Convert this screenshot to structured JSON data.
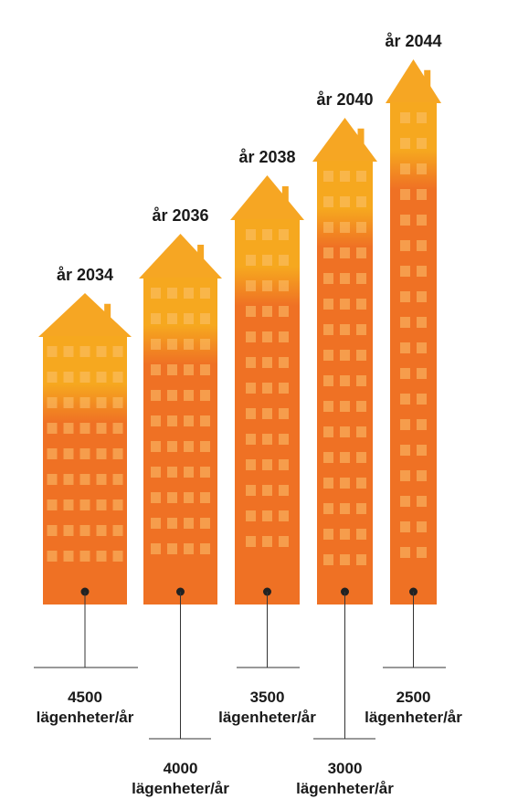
{
  "colors": {
    "roof": "#f6a623",
    "wall_top": "#f6a81f",
    "wall_bottom": "#ef7124",
    "window": "#fbc16e",
    "line": "#333333",
    "dot": "#222222"
  },
  "chart_data": {
    "type": "bar",
    "style": "building pictogram",
    "categories": [
      "år 2034",
      "år 2036",
      "år 2038",
      "år 2040",
      "år 2044"
    ],
    "values": [
      4500,
      4000,
      3500,
      3000,
      2500
    ],
    "unit": "lägenheter/år",
    "value_labels": [
      "4500",
      "4000",
      "3500",
      "3000",
      "2500"
    ],
    "unit_labels": [
      "lägenheter/år",
      "lägenheter/år",
      "lägenheter/år",
      "lägenheter/år",
      "lägenheter/år"
    ]
  }
}
